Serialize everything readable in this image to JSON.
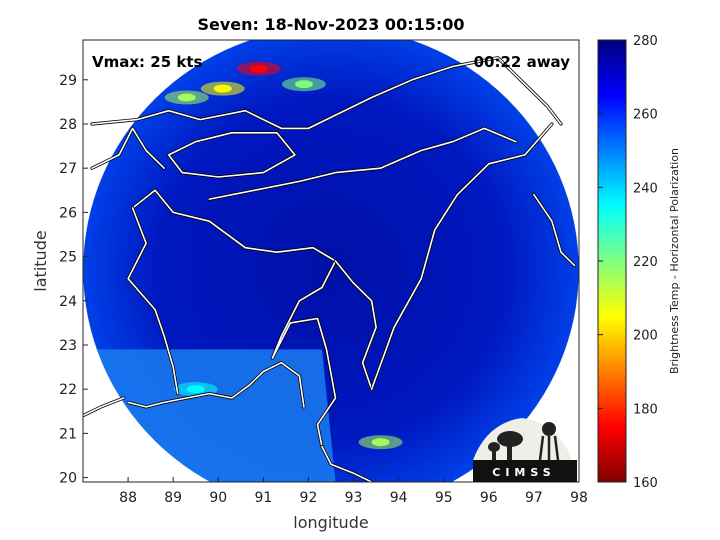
{
  "chart_data": {
    "type": "heatmap",
    "title": "Seven: 18-Nov-2023 00:15:00",
    "xlabel": "longitude",
    "ylabel": "latitude",
    "xlim": [
      87,
      98
    ],
    "ylim": [
      19.9,
      29.9
    ],
    "xticks": [
      88,
      89,
      90,
      91,
      92,
      93,
      94,
      95,
      96,
      97,
      98
    ],
    "yticks": [
      20,
      21,
      22,
      23,
      24,
      25,
      26,
      27,
      28,
      29
    ],
    "grid": true,
    "annotations": {
      "vmax": "Vmax: 25 kts",
      "time_away": "00:22 away"
    },
    "colorbar": {
      "label": "Brightness Temp - Horizontal Polarization",
      "range": [
        160,
        280
      ],
      "ticks": [
        160,
        180,
        200,
        220,
        240,
        260,
        280
      ],
      "colors": [
        "#7f0000",
        "#ff0000",
        "#ff8000",
        "#ffff00",
        "#80ff80",
        "#00ffff",
        "#0080ff",
        "#0000ff",
        "#00007f"
      ]
    },
    "scan_region": {
      "center_lon": 92.5,
      "center_lat": 24.7,
      "radius_deg": 5.5
    },
    "cold_regions": [
      {
        "lon": 90.9,
        "lat": 29.25,
        "value": 175
      },
      {
        "lon": 90.1,
        "lat": 28.8,
        "value": 205
      },
      {
        "lon": 89.3,
        "lat": 28.6,
        "value": 215
      },
      {
        "lon": 91.9,
        "lat": 28.9,
        "value": 220
      },
      {
        "lon": 93.6,
        "lat": 20.8,
        "value": 215
      },
      {
        "lon": 89.5,
        "lat": 22.0,
        "value": 235
      }
    ]
  },
  "logo": {
    "text": "CIMSS"
  }
}
